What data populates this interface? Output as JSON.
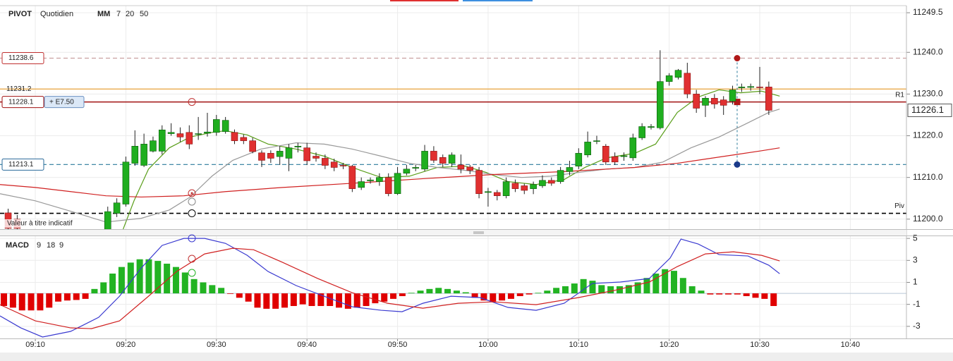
{
  "chart_data": [
    {
      "type": "candlestick",
      "title": "PIVOT",
      "period": "Quotidien",
      "indicator": "MM",
      "annotation": "Valeur à titre indicatif",
      "xlim": [
        546.1,
        646.2
      ],
      "ylim": [
        11197.6,
        11251.2
      ],
      "yticks": [
        11249.5,
        {
          "value": 11240,
          "label": "11240.0"
        },
        {
          "value": 11230,
          "label": "11230.0"
        },
        {
          "value": 11220,
          "label": "11220.0"
        },
        {
          "value": 11210,
          "label": "11210.0"
        },
        {
          "value": 11200,
          "label": "11200.0"
        }
      ],
      "grid": true,
      "up_color": "#1fae1f",
      "down_color": "#e03030",
      "x": [
        547,
        548,
        558,
        559,
        560,
        561,
        562,
        563,
        564,
        565,
        566,
        567,
        568,
        569,
        570,
        571,
        572,
        573,
        574,
        575,
        576,
        577,
        578,
        579,
        580,
        581,
        582,
        583,
        584,
        585,
        586,
        587,
        588,
        589,
        590,
        591,
        592,
        593,
        594,
        595,
        596,
        597,
        598,
        599,
        600,
        601,
        602,
        603,
        604,
        605,
        606,
        607,
        608,
        609,
        610,
        611,
        612,
        613,
        614,
        615,
        616,
        617,
        618,
        619,
        620,
        621,
        622,
        623,
        624,
        625,
        626,
        627,
        628,
        629,
        630,
        631
      ],
      "open": [
        11201.5,
        11200,
        11197,
        11201.4,
        11203.6,
        11213.4,
        11212.9,
        11216.3,
        11216.3,
        11220.5,
        11220.5,
        11220.8,
        11220.4,
        11220.6,
        11220.8,
        11221,
        11220.8,
        11219.6,
        11218.8,
        11215.9,
        11215.8,
        11215,
        11214.6,
        11217.3,
        11217.1,
        11215.1,
        11214.6,
        11213.7,
        11212.9,
        11212.7,
        11207.6,
        11209.2,
        11209,
        11210,
        11206.1,
        11211,
        11212.2,
        11212,
        11216.3,
        11214.8,
        11213.4,
        11213,
        11212.5,
        11211.7,
        11206.4,
        11206.4,
        11205.6,
        11208.6,
        11208,
        11207.3,
        11208,
        11209.3,
        11209,
        11211.4,
        11212.7,
        11215.4,
        11218.7,
        11217.5,
        11215,
        11215,
        11214.7,
        11219.5,
        11222,
        11221.9,
        11233,
        11234,
        11235,
        11230,
        11227.3,
        11229,
        11228.6,
        11228.3,
        11231.5,
        11231.6,
        11231.7,
        11231.7
      ],
      "high": [
        11202.5,
        11201,
        11203,
        11205,
        11215,
        11221.3,
        11220.5,
        11219.8,
        11222.5,
        11223,
        11222,
        11222.5,
        11224.5,
        11225.5,
        11225,
        11224.5,
        11221.5,
        11220.3,
        11219.5,
        11216.5,
        11216.5,
        11217.5,
        11218,
        11218.3,
        11218.3,
        11216,
        11215.5,
        11214.5,
        11213.5,
        11213,
        11210,
        11210,
        11211,
        11211,
        11212.5,
        11213,
        11213,
        11217.8,
        11217.5,
        11215.5,
        11216,
        11215.5,
        11213,
        11212.5,
        11207.5,
        11207,
        11210,
        11209.5,
        11208.5,
        11209,
        11210.5,
        11210,
        11212.5,
        11214,
        11217,
        11221,
        11220,
        11218,
        11216,
        11216,
        11220.5,
        11223,
        11222.8,
        11240.5,
        11235,
        11236,
        11237.5,
        11231,
        11229.5,
        11230,
        11229.5,
        11232,
        11232.5,
        11232.5,
        11236.5,
        11233
      ],
      "low": [
        11197,
        11197,
        11196,
        11200.5,
        11203,
        11212.8,
        11212.5,
        11216,
        11215.5,
        11220,
        11218.5,
        11216.8,
        11219,
        11219.8,
        11220,
        11220.5,
        11218,
        11218,
        11215.8,
        11212.5,
        11213.5,
        11213,
        11211.5,
        11216,
        11213,
        11213.8,
        11212,
        11211.5,
        11212,
        11206.5,
        11207,
        11208.5,
        11208,
        11205.5,
        11205.8,
        11210.5,
        11211.5,
        11211.5,
        11213.5,
        11212.5,
        11212.5,
        11211,
        11210.8,
        11205,
        11203,
        11204.5,
        11205,
        11206.5,
        11206,
        11206,
        11207.5,
        11208,
        11208.5,
        11210.5,
        11212,
        11214.8,
        11218,
        11213,
        11213,
        11214,
        11214,
        11219,
        11221.5,
        11221.5,
        11232,
        11233.5,
        11229,
        11225.5,
        11224.5,
        11226.5,
        11225,
        11227.5,
        11230.5,
        11230.8,
        11230,
        11225
      ],
      "close": [
        11197.8,
        11197.8,
        11201.8,
        11203.9,
        11213.7,
        11217.5,
        11218,
        11218.8,
        11221.4,
        11220.8,
        11219.7,
        11218,
        11220.5,
        11220.9,
        11223.9,
        11223.7,
        11218.8,
        11218.8,
        11216.2,
        11214.1,
        11214.6,
        11216.3,
        11217.1,
        11217.5,
        11214,
        11214.6,
        11212.9,
        11212.4,
        11212.8,
        11207.3,
        11209,
        11209.4,
        11210,
        11206.1,
        11211,
        11212,
        11212.4,
        11216.3,
        11214.1,
        11213.4,
        11215.4,
        11212,
        11211.7,
        11206.1,
        11206.6,
        11205.6,
        11209,
        11207.3,
        11206.9,
        11208.3,
        11209.3,
        11208.6,
        11211.7,
        11212.4,
        11215.8,
        11218.5,
        11218.8,
        11213.7,
        11213.7,
        11215.2,
        11219.5,
        11222.2,
        11222.2,
        11233,
        11234.4,
        11235.7,
        11230,
        11226.6,
        11229,
        11227.6,
        11227.3,
        11231,
        11231.7,
        11231.8,
        11231.6,
        11226.1
      ],
      "last_price": 11226.1,
      "series": [
        {
          "name": 7,
          "color": "#5a9e1a",
          "x": [
            559.7,
            560.9,
            562.5,
            564.8,
            567.1,
            569.5,
            571.0,
            573.4,
            575.7,
            578.8,
            581.9,
            585.0,
            588.2,
            591.3,
            594.4,
            597.5,
            599.8,
            602.2,
            605.3,
            608.4,
            610.7,
            613.1,
            616.2,
            618.5,
            620.9,
            623.2,
            625.5,
            627.9,
            630.2,
            632.2
          ],
          "values": [
            11197.6,
            11204.4,
            11212.0,
            11217.1,
            11219.7,
            11220.8,
            11221.2,
            11220.2,
            11218.0,
            11216.8,
            11215.1,
            11212.4,
            11210.0,
            11210.3,
            11212.4,
            11212.7,
            11211.2,
            11209.0,
            11208.3,
            11209.5,
            11212.4,
            11214.7,
            11215.8,
            11218.0,
            11225.6,
            11229.3,
            11231.0,
            11230.3,
            11230.7,
            11229.5
          ]
        },
        {
          "name": 20,
          "color": "#999999",
          "x": [
            546.1,
            550.0,
            553.9,
            557.8,
            561.7,
            564.8,
            567.1,
            569.5,
            571.8,
            574.9,
            578.8,
            581.9,
            585.0,
            588.2,
            591.3,
            594.4,
            597.5,
            600.6,
            603.7,
            606.9,
            610.0,
            613.1,
            616.2,
            619.3,
            622.4,
            625.5,
            628.7,
            631.0,
            632.2
          ],
          "values": [
            11206.1,
            11204.4,
            11201.9,
            11199.3,
            11200.2,
            11202.2,
            11205.3,
            11210.3,
            11214.1,
            11216.8,
            11218.3,
            11218.0,
            11216.8,
            11215.1,
            11213.4,
            11212.4,
            11211.7,
            11210.7,
            11210.0,
            11210.3,
            11211.2,
            11212.0,
            11212.4,
            11213.7,
            11217.1,
            11219.7,
            11223.1,
            11225.6,
            11226.4
          ]
        },
        {
          "name": 50,
          "color": "#d02020",
          "x": [
            546.1,
            550.0,
            553.9,
            557.8,
            561.7,
            566.4,
            571.0,
            577.3,
            585.0,
            592.8,
            600.6,
            608.4,
            616.2,
            620.9,
            624.0,
            627.1,
            630.2,
            632.2
          ],
          "values": [
            11208.3,
            11207.6,
            11206.6,
            11205.6,
            11205.3,
            11205.6,
            11206.6,
            11207.6,
            11208.6,
            11209.7,
            11210.7,
            11211.4,
            11212.4,
            11213.4,
            11214.4,
            11215.4,
            11216.4,
            11217.1
          ]
        }
      ],
      "levels": [
        {
          "value": 11238.6,
          "color": "#c9a0a0",
          "dash": true,
          "boxed": true,
          "box_color": "#c03030"
        },
        {
          "value": 11231.2,
          "color": "#e8a33a",
          "dash": false,
          "boxed": false
        },
        {
          "value": 11228.1,
          "color": "#a01010",
          "dash": false,
          "boxed": true,
          "box_color": "#a01010",
          "tag": "+ E7.50",
          "name": "R1"
        },
        {
          "value": 11213.1,
          "color": "#2a7a9a",
          "dash": true,
          "boxed": true,
          "box_color": "#2a6a9a"
        },
        {
          "value": 11201.4,
          "color": "#000000",
          "dash": true,
          "boxed": false,
          "labeled": false,
          "name": "Piv"
        }
      ]
    },
    {
      "type": "macd",
      "title": "MACD",
      "params": [
        9,
        18,
        9
      ],
      "xlim": [
        546.1,
        646.2
      ],
      "ylim": [
        -4.1,
        5.2
      ],
      "yticks": [
        5,
        3,
        1,
        -1,
        -3
      ],
      "xticks": [
        {
          "value": 550,
          "label": "09:10"
        },
        {
          "value": 560,
          "label": "09:20"
        },
        {
          "value": 570,
          "label": "09:30"
        },
        {
          "value": 580,
          "label": "09:40"
        },
        {
          "value": 590,
          "label": "09:50"
        },
        {
          "value": 600,
          "label": "10:00"
        },
        {
          "value": 610,
          "label": "10:10"
        },
        {
          "value": 620,
          "label": "10:20"
        },
        {
          "value": 630,
          "label": "10:30"
        },
        {
          "value": 640,
          "label": "10:40"
        }
      ],
      "grid": true,
      "up_color": "#22b322",
      "down_color": "#e00000",
      "x": [
        547,
        548,
        549,
        550,
        551,
        552,
        553,
        554,
        555,
        556,
        557,
        558,
        559,
        560,
        561,
        562,
        563,
        564,
        565,
        566,
        567,
        568,
        569,
        570,
        571,
        572,
        573,
        574,
        575,
        576,
        577,
        578,
        579,
        580,
        581,
        582,
        583,
        584,
        585,
        586,
        587,
        588,
        589,
        590,
        591,
        592,
        593,
        594,
        595,
        596,
        597,
        598,
        599,
        600,
        601,
        602,
        603,
        604,
        605,
        606,
        607,
        608,
        609,
        610,
        611,
        612,
        613,
        614,
        615,
        616,
        617,
        618,
        619,
        620,
        621,
        622,
        623,
        624,
        625,
        626,
        627,
        628,
        629,
        630,
        631,
        632
      ],
      "values": [
        -1.15,
        -1.3,
        -1.55,
        -1.55,
        -1.55,
        -1.3,
        -0.75,
        -0.65,
        -0.6,
        -0.5,
        0.4,
        1.0,
        1.8,
        2.4,
        2.8,
        3.1,
        3.1,
        2.95,
        2.7,
        2.4,
        1.9,
        1.3,
        1.0,
        0.75,
        0.5,
        -0.05,
        -0.4,
        -0.75,
        -1.3,
        -1.4,
        -1.4,
        -1.3,
        -1.15,
        -1.0,
        -1.15,
        -1.15,
        -1.15,
        -1.3,
        -1.4,
        -1.3,
        -1.15,
        -0.9,
        -0.75,
        -0.5,
        -0.25,
        0.05,
        0.25,
        0.4,
        0.5,
        0.4,
        0.25,
        0.1,
        -0.4,
        -0.65,
        -0.75,
        -0.65,
        -0.5,
        -0.25,
        -0.1,
        0.05,
        0.25,
        0.5,
        0.65,
        0.9,
        1.3,
        1.15,
        0.75,
        0.65,
        0.65,
        0.75,
        1.0,
        1.4,
        1.8,
        2.2,
        2.05,
        1.4,
        0.65,
        0.25,
        -0.1,
        -0.1,
        -0.1,
        -0.1,
        -0.25,
        -0.4,
        -0.5,
        -1.15
      ],
      "series": [
        {
          "color": "#3a3ad0",
          "x": [
            546.1,
            548.4,
            550.8,
            553.9,
            557.0,
            559.3,
            561.7,
            564.0,
            566.4,
            568.7,
            571.0,
            573.4,
            575.7,
            578.8,
            581.9,
            585.0,
            588.2,
            590.5,
            592.8,
            595.9,
            599.1,
            602.2,
            605.3,
            608.4,
            611.5,
            614.6,
            617.8,
            620.1,
            621.3,
            623.2,
            625.5,
            628.7,
            631.0,
            632.2
          ],
          "values": [
            -2.05,
            -3.14,
            -3.97,
            -3.46,
            -2.18,
            -0.26,
            2.31,
            4.36,
            5.0,
            5.0,
            4.55,
            3.46,
            1.99,
            0.71,
            -0.26,
            -1.22,
            -1.54,
            -1.67,
            -0.9,
            -0.26,
            -0.38,
            -1.28,
            -1.54,
            -0.9,
            0.9,
            1.03,
            1.35,
            3.21,
            4.94,
            4.49,
            3.53,
            3.4,
            2.56,
            1.79
          ]
        },
        {
          "color": "#d02020",
          "x": [
            546.1,
            550.0,
            553.9,
            556.2,
            559.3,
            562.5,
            565.6,
            568.7,
            571.8,
            574.1,
            577.3,
            581.2,
            585.0,
            588.9,
            592.8,
            596.7,
            600.6,
            605.3,
            610.0,
            613.9,
            617.8,
            620.9,
            624.0,
            627.1,
            630.2,
            632.2
          ],
          "values": [
            -1.03,
            -2.5,
            -3.14,
            -3.21,
            -2.5,
            -0.26,
            1.99,
            3.59,
            4.1,
            3.97,
            2.82,
            1.35,
            0.06,
            -0.9,
            -1.35,
            -0.9,
            -0.77,
            -1.03,
            -0.38,
            0.26,
            1.03,
            2.44,
            3.59,
            3.78,
            3.46,
            2.95
          ]
        }
      ]
    }
  ]
}
